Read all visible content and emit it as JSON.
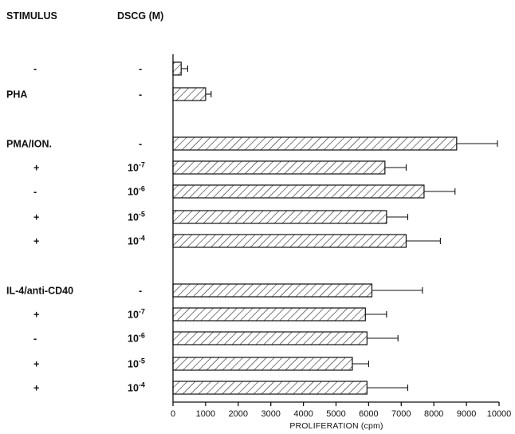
{
  "headers": {
    "stimulus": "STIMULUS",
    "dscg": "DSCG (M)"
  },
  "chart_data": {
    "type": "bar",
    "orientation": "horizontal",
    "xlabel": "PROLIFERATION (cpm)",
    "xlim": [
      0,
      10000
    ],
    "xticks": [
      0,
      1000,
      2000,
      3000,
      4000,
      5000,
      6000,
      7000,
      8000,
      9000,
      10000
    ],
    "rows": [
      {
        "stimulus": "-",
        "dscg_base": "-",
        "dscg_exp": "",
        "value": 250,
        "error": 200
      },
      {
        "stimulus": "PHA",
        "dscg_base": "-",
        "dscg_exp": "",
        "value": 1000,
        "error": 170
      },
      {
        "stimulus": "PMA/ION.",
        "dscg_base": "-",
        "dscg_exp": "",
        "value": 8700,
        "error": 1250
      },
      {
        "stimulus": "+",
        "dscg_base": "10",
        "dscg_exp": "-7",
        "value": 6500,
        "error": 650
      },
      {
        "stimulus": "-",
        "dscg_base": "10",
        "dscg_exp": "-6",
        "value": 7700,
        "error": 950
      },
      {
        "stimulus": "+",
        "dscg_base": "10",
        "dscg_exp": "-5",
        "value": 6550,
        "error": 650
      },
      {
        "stimulus": "+",
        "dscg_base": "10",
        "dscg_exp": "-4",
        "value": 7150,
        "error": 1050
      },
      {
        "stimulus": "IL-4/anti-CD40",
        "dscg_base": "-",
        "dscg_exp": "",
        "value": 6100,
        "error": 1550
      },
      {
        "stimulus": "+",
        "dscg_base": "10",
        "dscg_exp": "-7",
        "value": 5900,
        "error": 650
      },
      {
        "stimulus": "-",
        "dscg_base": "10",
        "dscg_exp": "-6",
        "value": 5950,
        "error": 950
      },
      {
        "stimulus": "+",
        "dscg_base": "10",
        "dscg_exp": "-5",
        "value": 5500,
        "error": 500
      },
      {
        "stimulus": "+",
        "dscg_base": "10",
        "dscg_exp": "-4",
        "value": 5950,
        "error": 1250
      }
    ]
  }
}
